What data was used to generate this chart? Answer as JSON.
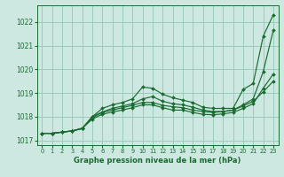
{
  "title": "Graphe pression niveau de la mer (hPa)",
  "bg_color": "#cce8e0",
  "grid_color": "#99ccbb",
  "line_color": "#1a6b30",
  "xlim": [
    -0.5,
    23.5
  ],
  "ylim": [
    1016.8,
    1022.7
  ],
  "yticks": [
    1017,
    1018,
    1019,
    1020,
    1021,
    1022
  ],
  "xticks": [
    0,
    1,
    2,
    3,
    4,
    5,
    6,
    7,
    8,
    9,
    10,
    11,
    12,
    13,
    14,
    15,
    16,
    17,
    18,
    19,
    20,
    21,
    22,
    23
  ],
  "series": [
    [
      1017.3,
      1017.3,
      1017.35,
      1017.4,
      1017.5,
      1018.0,
      1018.35,
      1018.5,
      1018.6,
      1018.75,
      1019.25,
      1019.2,
      1018.95,
      1018.8,
      1018.7,
      1018.6,
      1018.4,
      1018.35,
      1018.35,
      1018.35,
      1019.15,
      1019.4,
      1021.4,
      1022.3
    ],
    [
      1017.3,
      1017.3,
      1017.35,
      1017.4,
      1017.5,
      1018.0,
      1018.2,
      1018.35,
      1018.45,
      1018.55,
      1018.75,
      1018.85,
      1018.65,
      1018.55,
      1018.5,
      1018.4,
      1018.28,
      1018.22,
      1018.22,
      1018.28,
      1018.5,
      1018.75,
      1019.9,
      1021.65
    ],
    [
      1017.3,
      1017.3,
      1017.35,
      1017.4,
      1017.5,
      1017.9,
      1018.1,
      1018.2,
      1018.28,
      1018.38,
      1018.5,
      1018.5,
      1018.38,
      1018.28,
      1018.28,
      1018.18,
      1018.1,
      1018.08,
      1018.12,
      1018.18,
      1018.35,
      1018.55,
      1019.2,
      1019.8
    ],
    [
      1017.3,
      1017.3,
      1017.35,
      1017.4,
      1017.52,
      1017.95,
      1018.18,
      1018.28,
      1018.38,
      1018.48,
      1018.6,
      1018.6,
      1018.48,
      1018.42,
      1018.38,
      1018.28,
      1018.22,
      1018.18,
      1018.22,
      1018.28,
      1018.45,
      1018.65,
      1019.05,
      1019.5
    ]
  ]
}
